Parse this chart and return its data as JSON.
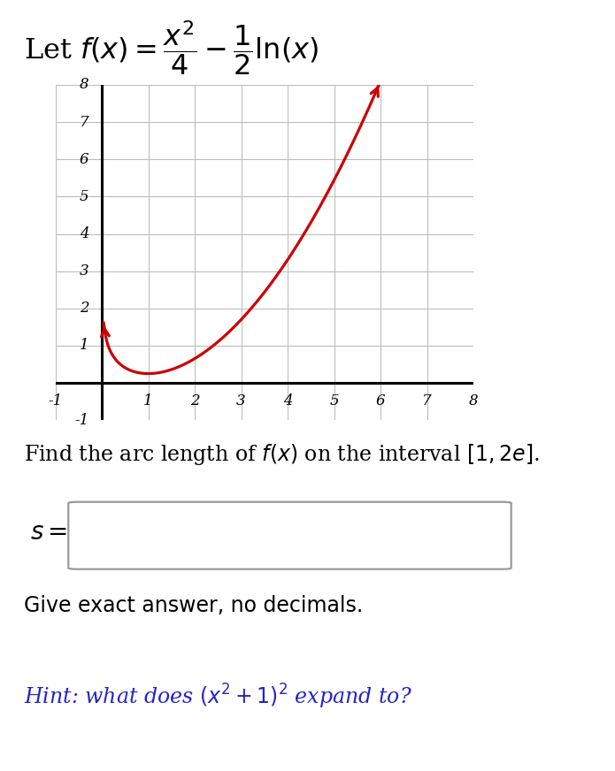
{
  "formula_title": "Let $f(x) = \\dfrac{x^2}{4} - \\dfrac{1}{2}\\ln(x)$",
  "curve_color": "#cc0000",
  "background_color": "#ffffff",
  "grid_color": "#bbbbbb",
  "xlim": [
    -1,
    8
  ],
  "ylim": [
    -1,
    8
  ],
  "x_ticks": [
    -1,
    1,
    2,
    3,
    4,
    5,
    6,
    7,
    8
  ],
  "y_ticks": [
    -1,
    1,
    2,
    3,
    4,
    5,
    6,
    7,
    8
  ],
  "x_start": 0.04,
  "x_end": 6.05,
  "problem_text": "Find the arc length of $f(x)$ on the interval $[1, 2e]$.",
  "exact_text": "Give exact answer, no decimals.",
  "hint_text": "Hint: what does $\\left(x^2 + 1\\right)^2$ expand to?",
  "hint_color": "#2222cc",
  "curve_linewidth": 2.3,
  "title_fontsize": 23,
  "prob_fontsize": 17,
  "tick_fontsize": 12,
  "exact_fontsize": 17,
  "hint_fontsize": 17
}
